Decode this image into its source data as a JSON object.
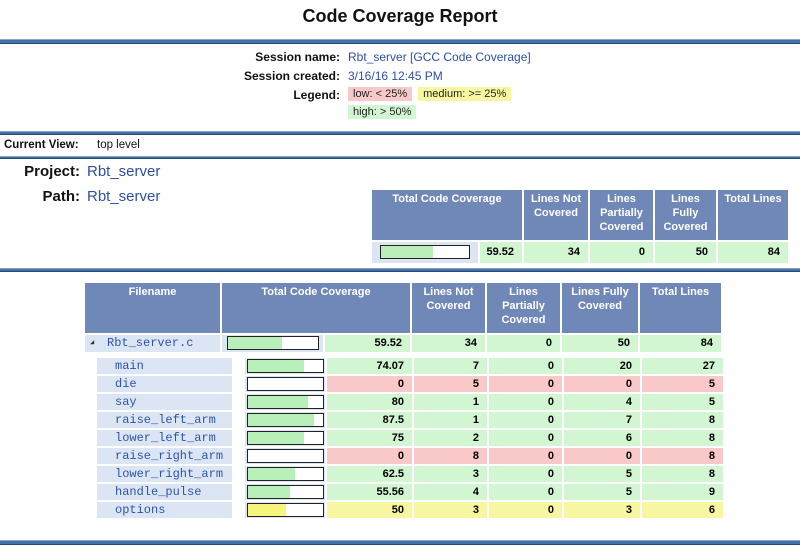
{
  "title": "Code Coverage Report",
  "session": {
    "name_label": "Session name:",
    "name_value": "Rbt_server [GCC Code Coverage]",
    "created_label": "Session created:",
    "created_value": "3/16/16 12:45 PM",
    "legend_label": "Legend:",
    "legend": [
      {
        "label": "low: < 25%",
        "status": "low"
      },
      {
        "label": "medium: >= 25%",
        "status": "medium"
      },
      {
        "label": "high: > 50%",
        "status": "high"
      }
    ]
  },
  "current_view": {
    "label": "Current View:",
    "value": "top level"
  },
  "project": {
    "label": "Project:",
    "value": "Rbt_server"
  },
  "path": {
    "label": "Path:",
    "value": "Rbt_server"
  },
  "summary_table": {
    "headers": [
      "Total Code Coverage",
      "Lines Not Covered",
      "Lines Partially Covered",
      "Lines Fully Covered",
      "Total Lines"
    ],
    "row": {
      "coverage": "59.52",
      "not_covered": "34",
      "partially_covered": "0",
      "fully_covered": "50",
      "total_lines": "84",
      "status": "high"
    }
  },
  "file_table": {
    "headers": [
      "Filename",
      "Total Code Coverage",
      "Lines Not Covered",
      "Lines Partially Covered",
      "Lines Fully Covered",
      "Total Lines"
    ],
    "file_row": {
      "name": "Rbt_server.c",
      "coverage": "59.52",
      "not_covered": "34",
      "partially_covered": "0",
      "fully_covered": "50",
      "total_lines": "84",
      "status": "high"
    },
    "functions": [
      {
        "name": "main",
        "coverage": "74.07",
        "not_covered": "7",
        "partially_covered": "0",
        "fully_covered": "20",
        "total_lines": "27",
        "status": "high"
      },
      {
        "name": "die",
        "coverage": "0",
        "not_covered": "5",
        "partially_covered": "0",
        "fully_covered": "0",
        "total_lines": "5",
        "status": "low"
      },
      {
        "name": "say",
        "coverage": "80",
        "not_covered": "1",
        "partially_covered": "0",
        "fully_covered": "4",
        "total_lines": "5",
        "status": "high"
      },
      {
        "name": "raise_left_arm",
        "coverage": "87.5",
        "not_covered": "1",
        "partially_covered": "0",
        "fully_covered": "7",
        "total_lines": "8",
        "status": "high"
      },
      {
        "name": "lower_left_arm",
        "coverage": "75",
        "not_covered": "2",
        "partially_covered": "0",
        "fully_covered": "6",
        "total_lines": "8",
        "status": "high"
      },
      {
        "name": "raise_right_arm",
        "coverage": "0",
        "not_covered": "8",
        "partially_covered": "0",
        "fully_covered": "0",
        "total_lines": "8",
        "status": "low"
      },
      {
        "name": "lower_right_arm",
        "coverage": "62.5",
        "not_covered": "3",
        "partially_covered": "0",
        "fully_covered": "5",
        "total_lines": "8",
        "status": "high"
      },
      {
        "name": "handle_pulse",
        "coverage": "55.56",
        "not_covered": "4",
        "partially_covered": "0",
        "fully_covered": "5",
        "total_lines": "9",
        "status": "high"
      },
      {
        "name": "options",
        "coverage": "50",
        "not_covered": "3",
        "partially_covered": "0",
        "fully_covered": "3",
        "total_lines": "6",
        "status": "medium"
      }
    ]
  },
  "colors": {
    "header_blue": "#7088b8",
    "row_blue": "#dbe5f3",
    "high_green": "#d2f5d2",
    "low_pink": "#f9c9c9",
    "medium_yellow": "#f7f7a1",
    "bar_fill_green": "#b9f0b9",
    "bar_fill_yellow": "#f5f57e",
    "link_blue": "#2d4fa2",
    "rule_blue": "#4470a8"
  }
}
